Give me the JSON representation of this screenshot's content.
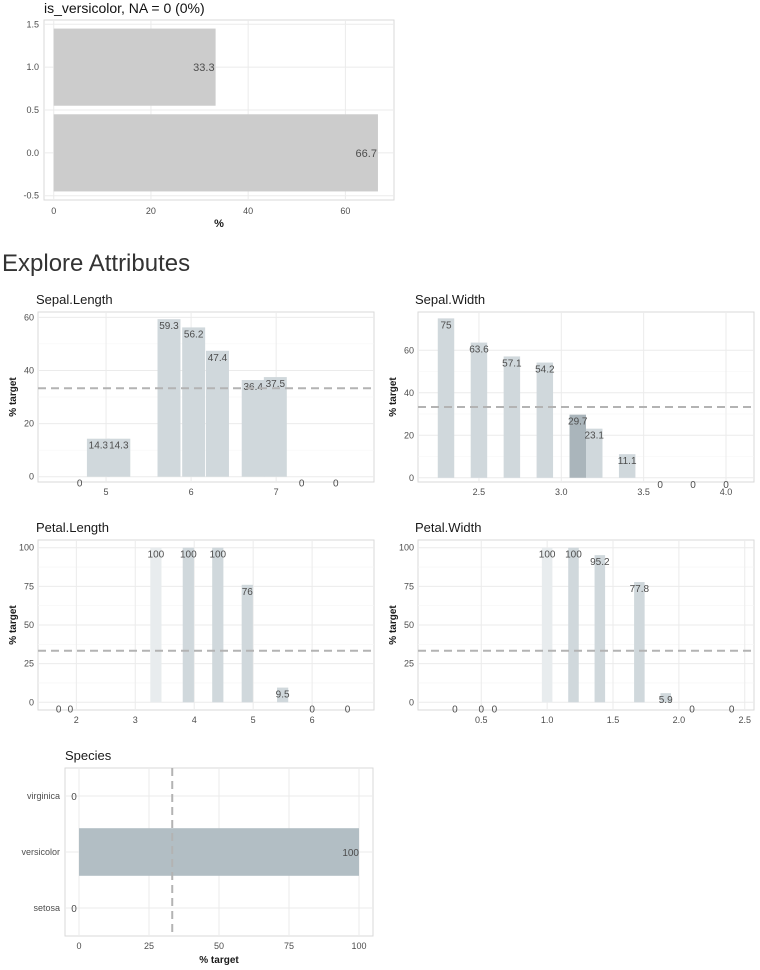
{
  "target_plot": {
    "title": "is_versicolor, NA = 0 (0%)",
    "chart_data": {
      "type": "bar",
      "orientation": "horizontal",
      "categories": [
        1.0,
        0.0
      ],
      "values": [
        33.3,
        66.7
      ],
      "labels": [
        "33.3",
        "66.7"
      ],
      "xlabel": "%",
      "ylabel": "",
      "xlim": [
        -2,
        70
      ],
      "ylim": [
        -0.55,
        1.55
      ],
      "xticks": [
        0,
        20,
        40,
        60
      ],
      "xtick_labels": [
        "0",
        "20",
        "40",
        "60"
      ],
      "yticks": [
        -0.5,
        0,
        0.5,
        1,
        1.5
      ],
      "ytick_labels": [
        "-0.5",
        "0.0",
        "0.5",
        "1.0",
        "1.5"
      ],
      "bar_color": "#cccccc"
    }
  },
  "section_title": "Explore Attributes",
  "charts": [
    {
      "title": "Sepal.Length",
      "chart_data": {
        "type": "bar",
        "x": [
          4.69,
          4.91,
          5.15,
          5.74,
          6.03,
          6.31,
          6.73,
          6.99,
          7.3,
          7.7
        ],
        "values": [
          0,
          14.3,
          14.3,
          59.3,
          56.2,
          47.4,
          36.4,
          37.5,
          0,
          0
        ],
        "labels": [
          "0",
          "14.3",
          "14.3",
          "59.3",
          "56.2",
          "47.4",
          "36.4",
          "37.5",
          "0",
          "0"
        ],
        "bar_width": 0.27,
        "xlim": [
          4.2,
          8.15
        ],
        "ylim": [
          -2,
          62
        ],
        "xticks": [
          5,
          6,
          7
        ],
        "xtick_labels": [
          "5",
          "6",
          "7"
        ],
        "yticks": [
          0,
          20,
          40,
          60
        ],
        "ytick_labels": [
          "0",
          "20",
          "40",
          "60"
        ],
        "ylabel": "% target",
        "reference_line": 33.3,
        "fills": [
          "#d0d8dc",
          "#d0d8dc",
          "#d0d8dc",
          "#d0d8dc",
          "#d0d8dc",
          "#d0d8dc",
          "#d0d8dc",
          "#d0d8dc",
          "#d0d8dc",
          "#d0d8dc"
        ]
      }
    },
    {
      "title": "Sepal.Width",
      "chart_data": {
        "type": "bar",
        "x": [
          2.3,
          2.5,
          2.7,
          2.9,
          3.1,
          3.2,
          3.4,
          3.6,
          3.8,
          4.0
        ],
        "values": [
          75,
          63.6,
          57.1,
          54.2,
          29.7,
          23.1,
          11.1,
          0,
          0,
          0
        ],
        "labels": [
          "75",
          "63.6",
          "57.1",
          "54.2",
          "29.7",
          "23.1",
          "11.1",
          "0",
          "0",
          "0"
        ],
        "bar_width": 0.1,
        "xlim": [
          2.13,
          4.17
        ],
        "ylim": [
          -2,
          78
        ],
        "xticks": [
          2.5,
          3.0,
          3.5,
          4.0
        ],
        "xtick_labels": [
          "2.5",
          "3.0",
          "3.5",
          "4.0"
        ],
        "yticks": [
          0,
          20,
          40,
          60
        ],
        "ytick_labels": [
          "0",
          "20",
          "40",
          "60"
        ],
        "ylabel": "% target",
        "reference_line": 33.3,
        "fills": [
          "#d0d8dc",
          "#d0d8dc",
          "#d0d8dc",
          "#d0d8dc",
          "#aab5bb",
          "#d0d8dc",
          "#d0d8dc",
          "#d0d8dc",
          "#d0d8dc",
          "#d0d8dc"
        ]
      }
    },
    {
      "title": "Petal.Length",
      "chart_data": {
        "type": "bar",
        "x": [
          1.7,
          1.9,
          3.35,
          3.9,
          4.4,
          4.9,
          5.5,
          6.0,
          6.6
        ],
        "values": [
          0,
          0,
          100,
          100,
          100,
          76,
          9.5,
          0,
          0
        ],
        "labels": [
          "0",
          "0",
          "100",
          "100",
          "100",
          "76",
          "9.5",
          "0",
          "0"
        ],
        "bar_width": 0.19,
        "xlim": [
          1.35,
          7.05
        ],
        "ylim": [
          -5,
          105
        ],
        "xticks": [
          2,
          3,
          4,
          5,
          6
        ],
        "xtick_labels": [
          "2",
          "3",
          "4",
          "5",
          "6"
        ],
        "yticks": [
          0,
          25,
          50,
          75,
          100
        ],
        "ytick_labels": [
          "0",
          "25",
          "50",
          "75",
          "100"
        ],
        "ylabel": "% target",
        "reference_line": 33.3,
        "fills": [
          "#d0d8dc",
          "#d0d8dc",
          "#e8ecee",
          "#d0d8dc",
          "#d0d8dc",
          "#d0d8dc",
          "#d0d8dc",
          "#d0d8dc",
          "#d0d8dc"
        ]
      }
    },
    {
      "title": "Petal.Width",
      "chart_data": {
        "type": "bar",
        "x": [
          0.3,
          0.5,
          0.6,
          1.0,
          1.2,
          1.4,
          1.7,
          1.9,
          2.1,
          2.4
        ],
        "values": [
          0,
          0,
          0,
          100,
          100,
          95.2,
          77.8,
          5.9,
          0,
          0
        ],
        "labels": [
          "0",
          "0",
          "0",
          "100",
          "100",
          "95.2",
          "77.8",
          "5.9",
          "0",
          "0"
        ],
        "bar_width": 0.08,
        "xlim": [
          0.02,
          2.57
        ],
        "ylim": [
          -5,
          105
        ],
        "xticks": [
          0.5,
          1.0,
          1.5,
          2.0,
          2.5
        ],
        "xtick_labels": [
          "0.5",
          "1.0",
          "1.5",
          "2.0",
          "2.5"
        ],
        "yticks": [
          0,
          25,
          50,
          75,
          100
        ],
        "ytick_labels": [
          "0",
          "25",
          "50",
          "75",
          "100"
        ],
        "ylabel": "% target",
        "reference_line": 33.3,
        "fills": [
          "#d0d8dc",
          "#d0d8dc",
          "#d0d8dc",
          "#e8ecee",
          "#d0d8dc",
          "#d0d8dc",
          "#d0d8dc",
          "#d0d8dc",
          "#d0d8dc",
          "#d0d8dc"
        ]
      }
    }
  ],
  "species": {
    "title": "Species",
    "chart_data": {
      "type": "bar",
      "orientation": "horizontal",
      "categories": [
        "virginica",
        "versicolor",
        "setosa"
      ],
      "values": [
        0,
        100,
        0
      ],
      "labels": [
        "0",
        "100",
        "0"
      ],
      "xlabel": "% target",
      "xlim": [
        -5,
        105
      ],
      "xticks": [
        0,
        25,
        50,
        75,
        100
      ],
      "xtick_labels": [
        "0",
        "25",
        "50",
        "75",
        "100"
      ],
      "reference_line": 33.3,
      "bar_color": "#b2bec4"
    }
  },
  "colors": {
    "grid": "#ebebeb",
    "border": "#d9d9d9",
    "reference_line": "#b3b3b3",
    "label": "#555555"
  }
}
